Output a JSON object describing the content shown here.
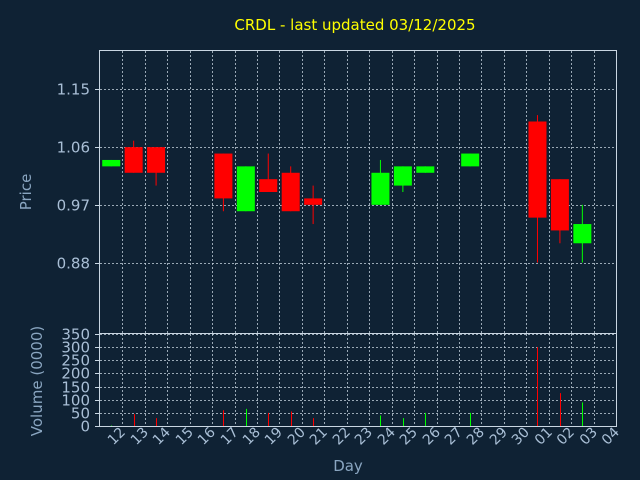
{
  "chart_data": {
    "type": "candlestick",
    "title": "CRDL - last updated 03/12/2025",
    "xlabel": "Day",
    "x_ticks": [
      "12",
      "13",
      "14",
      "15",
      "16",
      "17",
      "18",
      "19",
      "20",
      "21",
      "22",
      "23",
      "24",
      "25",
      "26",
      "27",
      "28",
      "29",
      "30",
      "01",
      "02",
      "03",
      "04"
    ],
    "price": {
      "ylabel": "Price",
      "ylim": [
        0.77,
        1.21
      ],
      "yticks": [
        "1.15",
        "1.06",
        "0.97",
        "0.88"
      ],
      "ytick_values": [
        1.15,
        1.06,
        0.97,
        0.88
      ],
      "up_color": "#00ff00",
      "down_color": "#ff0000",
      "candles": [
        {
          "day": "12",
          "open": 1.03,
          "high": 1.04,
          "low": 1.03,
          "close": 1.04
        },
        {
          "day": "13",
          "open": 1.06,
          "high": 1.07,
          "low": 1.02,
          "close": 1.02
        },
        {
          "day": "14",
          "open": 1.06,
          "high": 1.06,
          "low": 1.0,
          "close": 1.02
        },
        {
          "day": "17",
          "open": 1.05,
          "high": 1.05,
          "low": 0.96,
          "close": 0.98
        },
        {
          "day": "18",
          "open": 0.96,
          "high": 1.03,
          "low": 0.96,
          "close": 1.03
        },
        {
          "day": "19",
          "open": 1.01,
          "high": 1.05,
          "low": 0.99,
          "close": 0.99
        },
        {
          "day": "20",
          "open": 1.02,
          "high": 1.03,
          "low": 0.96,
          "close": 0.96
        },
        {
          "day": "21",
          "open": 0.98,
          "high": 1.0,
          "low": 0.94,
          "close": 0.97
        },
        {
          "day": "24",
          "open": 0.97,
          "high": 1.04,
          "low": 0.97,
          "close": 1.02
        },
        {
          "day": "25",
          "open": 1.0,
          "high": 1.03,
          "low": 0.99,
          "close": 1.03
        },
        {
          "day": "26",
          "open": 1.02,
          "high": 1.03,
          "low": 1.02,
          "close": 1.03
        },
        {
          "day": "28",
          "open": 1.03,
          "high": 1.05,
          "low": 1.03,
          "close": 1.05
        },
        {
          "day": "01",
          "open": 1.1,
          "high": 1.11,
          "low": 0.88,
          "close": 0.95
        },
        {
          "day": "02",
          "open": 1.01,
          "high": 1.01,
          "low": 0.91,
          "close": 0.93
        },
        {
          "day": "03",
          "open": 0.91,
          "high": 0.97,
          "low": 0.88,
          "close": 0.94
        }
      ]
    },
    "volume": {
      "ylabel": "Volume (0000)",
      "ylim": [
        0,
        350
      ],
      "yticks": [
        "350",
        "300",
        "250",
        "200",
        "150",
        "100",
        "50",
        "0"
      ],
      "ytick_values": [
        350,
        300,
        250,
        200,
        150,
        100,
        50,
        0
      ],
      "bars": [
        {
          "day": "12",
          "value": 2,
          "direction": "up"
        },
        {
          "day": "13",
          "value": 45,
          "direction": "down"
        },
        {
          "day": "14",
          "value": 30,
          "direction": "down"
        },
        {
          "day": "17",
          "value": 60,
          "direction": "down"
        },
        {
          "day": "18",
          "value": 65,
          "direction": "up"
        },
        {
          "day": "19",
          "value": 50,
          "direction": "down"
        },
        {
          "day": "20",
          "value": 55,
          "direction": "down"
        },
        {
          "day": "21",
          "value": 30,
          "direction": "down"
        },
        {
          "day": "24",
          "value": 40,
          "direction": "up"
        },
        {
          "day": "25",
          "value": 30,
          "direction": "up"
        },
        {
          "day": "26",
          "value": 50,
          "direction": "up"
        },
        {
          "day": "28",
          "value": 50,
          "direction": "up"
        },
        {
          "day": "01",
          "value": 300,
          "direction": "down"
        },
        {
          "day": "02",
          "value": 125,
          "direction": "down"
        },
        {
          "day": "03",
          "value": 90,
          "direction": "up"
        }
      ]
    },
    "grid": true
  }
}
